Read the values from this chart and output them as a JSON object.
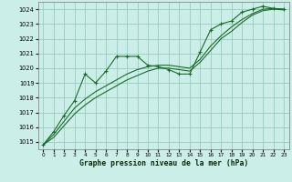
{
  "title": "Graphe pression niveau de la mer (hPa)",
  "background_color": "#cceee8",
  "grid_color": "#99ccbb",
  "line_color": "#1a6b2a",
  "xlim": [
    -0.5,
    23.5
  ],
  "ylim": [
    1014.5,
    1024.5
  ],
  "yticks": [
    1015,
    1016,
    1017,
    1018,
    1019,
    1020,
    1021,
    1022,
    1023,
    1024
  ],
  "xticks": [
    0,
    1,
    2,
    3,
    4,
    5,
    6,
    7,
    8,
    9,
    10,
    11,
    12,
    13,
    14,
    15,
    16,
    17,
    18,
    19,
    20,
    21,
    22,
    23
  ],
  "series_main": {
    "x": [
      0,
      1,
      2,
      3,
      4,
      5,
      6,
      7,
      8,
      9,
      10,
      11,
      12,
      13,
      14,
      15,
      16,
      17,
      18,
      19,
      20,
      21,
      22,
      23
    ],
    "y": [
      1014.8,
      1015.7,
      1016.8,
      1017.8,
      1019.6,
      1019.0,
      1019.8,
      1020.8,
      1020.8,
      1020.8,
      1020.2,
      1020.1,
      1019.9,
      1019.6,
      1019.6,
      1021.1,
      1022.6,
      1023.0,
      1023.2,
      1023.8,
      1024.0,
      1024.2,
      1024.05,
      1024.0
    ]
  },
  "series_smooth1": {
    "x": [
      0,
      1,
      2,
      3,
      4,
      5,
      6,
      7,
      8,
      9,
      10,
      11,
      12,
      13,
      14,
      15,
      16,
      17,
      18,
      19,
      20,
      21,
      22,
      23
    ],
    "y": [
      1014.8,
      1015.5,
      1016.4,
      1017.3,
      1017.9,
      1018.4,
      1018.8,
      1019.2,
      1019.6,
      1019.9,
      1020.1,
      1020.2,
      1020.2,
      1020.1,
      1020.0,
      1020.6,
      1021.5,
      1022.2,
      1022.8,
      1023.3,
      1023.7,
      1024.0,
      1024.05,
      1024.0
    ]
  },
  "series_smooth2": {
    "x": [
      0,
      1,
      2,
      3,
      4,
      5,
      6,
      7,
      8,
      9,
      10,
      11,
      12,
      13,
      14,
      15,
      16,
      17,
      18,
      19,
      20,
      21,
      22,
      23
    ],
    "y": [
      1014.8,
      1015.3,
      1016.1,
      1016.9,
      1017.5,
      1018.0,
      1018.4,
      1018.8,
      1019.2,
      1019.5,
      1019.8,
      1020.0,
      1020.0,
      1019.9,
      1019.8,
      1020.4,
      1021.2,
      1022.0,
      1022.5,
      1023.1,
      1023.6,
      1023.9,
      1024.0,
      1023.95
    ]
  },
  "series_sparse": {
    "x": [
      0,
      1,
      2,
      3,
      4,
      5,
      6,
      7,
      8,
      9,
      10,
      11,
      12,
      13,
      14,
      15,
      16,
      17,
      18,
      19,
      20,
      21,
      22,
      23
    ],
    "y": [
      1014.8,
      1015.7,
      1016.8,
      1017.8,
      1019.6,
      1019.0,
      1019.8,
      1020.8,
      1020.8,
      1020.8,
      1020.2,
      1020.1,
      1019.9,
      1019.6,
      1019.6,
      1021.1,
      1022.6,
      1023.0,
      1023.2,
      1023.8,
      1024.0,
      1024.2,
      1024.05,
      1024.0
    ]
  }
}
